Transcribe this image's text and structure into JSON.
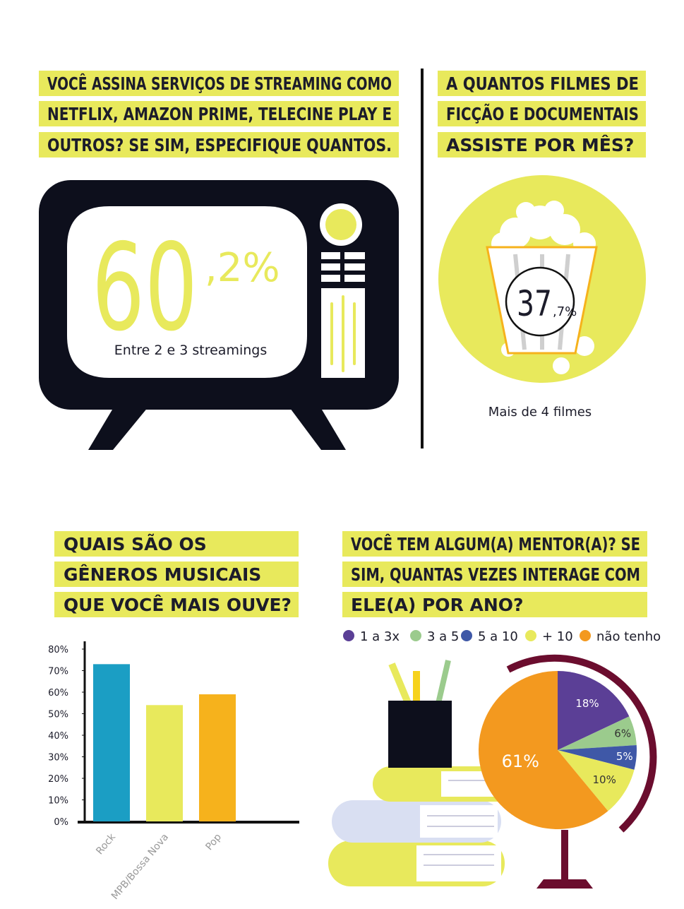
{
  "streaming": {
    "question_lines": [
      "VOCÊ ASSINA SERVIÇOS DE STREAMING COMO",
      "NETFLIX, AMAZON PRIME, TELECINE PLAY E",
      "OUTROS? SE SIM, ESPECIFIQUE QUANTOS."
    ],
    "value_int": "60",
    "value_dec": ",2%",
    "caption": "Entre 2 e 3 streamings"
  },
  "films": {
    "question_lines": [
      "A QUANTOS FILMES DE",
      "FICÇÃO E DOCUMENTAIS",
      "ASSISTE POR MÊS?"
    ],
    "value_int": "37",
    "value_dec": ",7%",
    "caption": "Mais de 4 filmes"
  },
  "music": {
    "question_lines": [
      "QUAIS SÃO OS",
      "GÊNEROS MUSICAIS",
      "QUE VOCÊ MAIS OUVE?"
    ]
  },
  "mentor": {
    "question_lines": [
      "VOCÊ TEM ALGUM(A) MENTOR(A)? SE",
      "SIM, QUANTAS VEZES INTERAGE COM",
      "ELE(A) POR ANO?"
    ]
  },
  "chart_data": [
    {
      "type": "bar",
      "categories": [
        "Rock",
        "MPB/Bossa Nova",
        "Pop"
      ],
      "values": [
        73,
        54,
        59
      ],
      "colors": [
        "#1b9ec4",
        "#e8e95c",
        "#f6b21c"
      ],
      "ylim": [
        0,
        80
      ],
      "yticks": [
        {
          "value": 0,
          "label": "0%"
        },
        {
          "value": 10,
          "label": "10%"
        },
        {
          "value": 20,
          "label": "20%"
        },
        {
          "value": 30,
          "label": "30%"
        },
        {
          "value": 40,
          "label": "40%"
        },
        {
          "value": 50,
          "label": "50%"
        },
        {
          "value": 60,
          "label": "60%"
        },
        {
          "value": 70,
          "label": "70%"
        },
        {
          "value": 80,
          "label": "80%"
        }
      ]
    },
    {
      "type": "pie",
      "categories": [
        "1 a 3x",
        "3 a 5",
        "5 a 10",
        "+ 10",
        "não tenho"
      ],
      "values": [
        18,
        6,
        5,
        10,
        61
      ],
      "value_labels": [
        "18%",
        "6%",
        "5%",
        "10%",
        "61%"
      ],
      "colors": [
        "#5b3f96",
        "#9bcb8d",
        "#3f58a7",
        "#e8e95c",
        "#f3991f"
      ]
    }
  ]
}
